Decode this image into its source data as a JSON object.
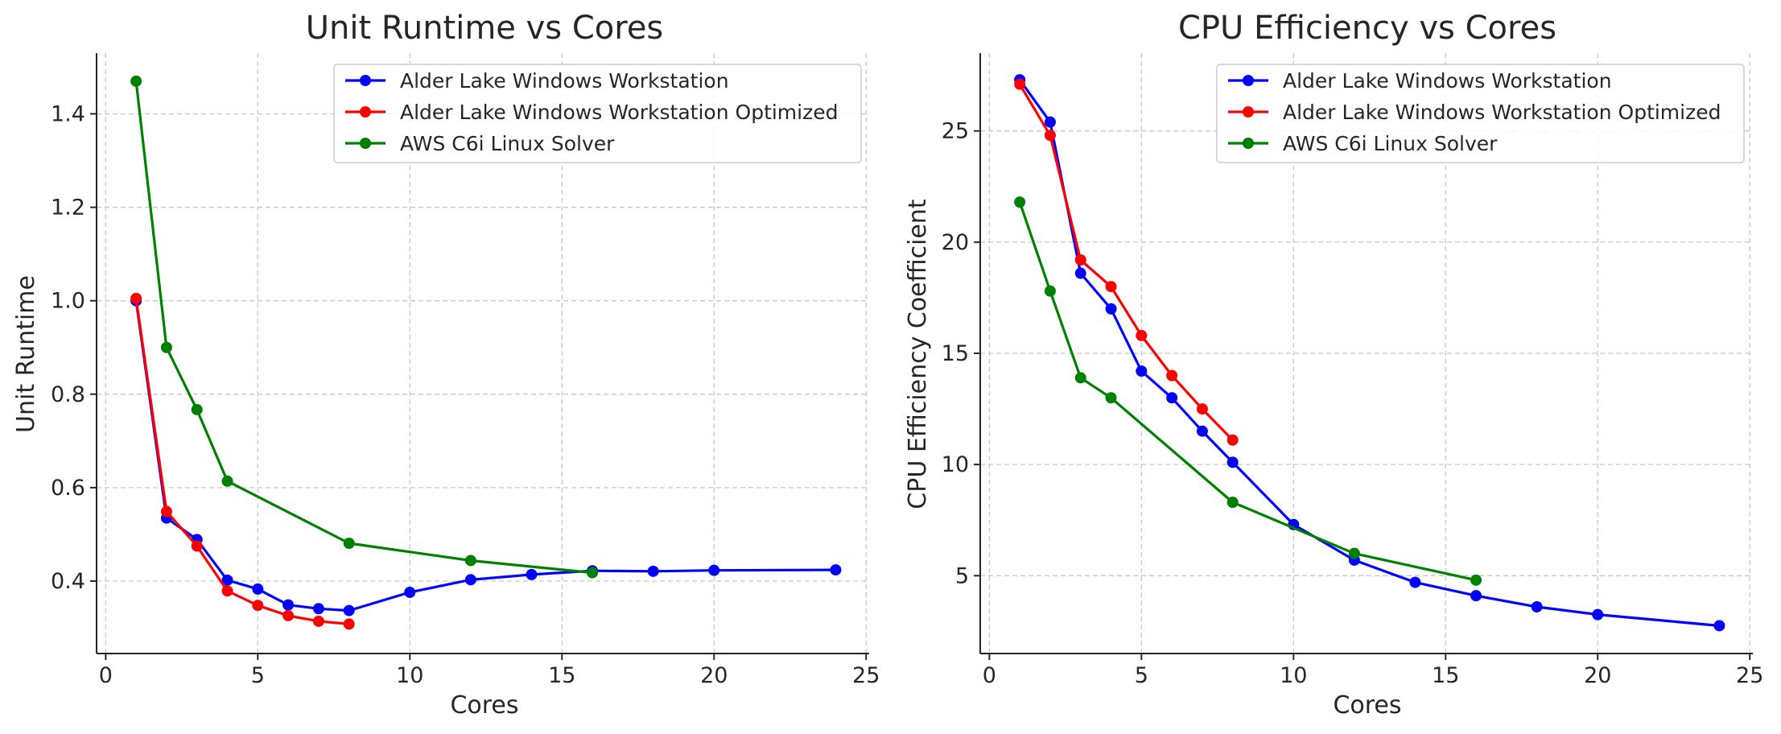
{
  "colors": {
    "blue": "#0000ff",
    "red": "#ff0000",
    "green": "#008000",
    "grid": "#c8c8c8",
    "axis": "#262626"
  },
  "chart_data": [
    {
      "type": "line",
      "title": "Unit Runtime vs Cores",
      "xlabel": "Cores",
      "ylabel": "Unit Runtime",
      "xlim": [
        -0.3,
        25.1
      ],
      "ylim": [
        0.245,
        1.53
      ],
      "xticks": [
        0,
        5,
        10,
        15,
        20,
        25
      ],
      "yticks": [
        0.4,
        0.6,
        0.8,
        1.0,
        1.2,
        1.4
      ],
      "ytick_labels": [
        "0.4",
        "0.6",
        "0.8",
        "1.0",
        "1.2",
        "1.4"
      ],
      "grid": true,
      "legend_position": "upper-right",
      "series": [
        {
          "name": "Alder Lake Windows Workstation",
          "color": "#0000ff",
          "x": [
            1,
            2,
            3,
            4,
            5,
            6,
            7,
            8,
            10,
            12,
            14,
            16,
            18,
            20,
            24
          ],
          "y": [
            1.0,
            0.535,
            0.489,
            0.402,
            0.383,
            0.349,
            0.341,
            0.337,
            0.376,
            0.403,
            0.414,
            0.422,
            0.421,
            0.423,
            0.424
          ]
        },
        {
          "name": "Alder Lake Windows Workstation Optimized",
          "color": "#ff0000",
          "x": [
            1,
            2,
            3,
            4,
            5,
            6,
            7,
            8
          ],
          "y": [
            1.005,
            0.549,
            0.475,
            0.379,
            0.348,
            0.326,
            0.314,
            0.308
          ]
        },
        {
          "name": "AWS C6i Linux Solver",
          "color": "#008000",
          "x": [
            1,
            2,
            3,
            4,
            8,
            12,
            16
          ],
          "y": [
            1.47,
            0.9,
            0.767,
            0.614,
            0.481,
            0.444,
            0.418
          ]
        }
      ]
    },
    {
      "type": "line",
      "title": "CPU Efficiency vs Cores",
      "xlabel": "Cores",
      "ylabel": "CPU Efficiency Coefficient",
      "xlim": [
        -0.3,
        25.1
      ],
      "ylim": [
        1.5,
        28.5
      ],
      "xticks": [
        0,
        5,
        10,
        15,
        20,
        25
      ],
      "yticks": [
        5,
        10,
        15,
        20,
        25
      ],
      "ytick_labels": [
        "5",
        "10",
        "15",
        "20",
        "25"
      ],
      "grid": true,
      "legend_position": "upper-right",
      "series": [
        {
          "name": "Alder Lake Windows Workstation",
          "color": "#0000ff",
          "x": [
            1,
            2,
            3,
            4,
            5,
            6,
            7,
            8,
            10,
            12,
            14,
            16,
            18,
            20,
            24
          ],
          "y": [
            27.3,
            25.4,
            18.6,
            17.0,
            14.2,
            13.0,
            11.5,
            10.1,
            7.3,
            5.7,
            4.7,
            4.1,
            3.6,
            3.25,
            2.75
          ]
        },
        {
          "name": "Alder Lake Windows Workstation Optimized",
          "color": "#ff0000",
          "x": [
            1,
            2,
            3,
            4,
            5,
            6,
            7,
            8
          ],
          "y": [
            27.1,
            24.8,
            19.2,
            18.0,
            15.8,
            14.0,
            12.5,
            11.1
          ]
        },
        {
          "name": "AWS C6i Linux Solver",
          "color": "#008000",
          "x": [
            1,
            2,
            3,
            4,
            8,
            12,
            16
          ],
          "y": [
            21.8,
            17.8,
            13.9,
            13.0,
            8.3,
            6.0,
            4.8
          ]
        }
      ]
    }
  ]
}
